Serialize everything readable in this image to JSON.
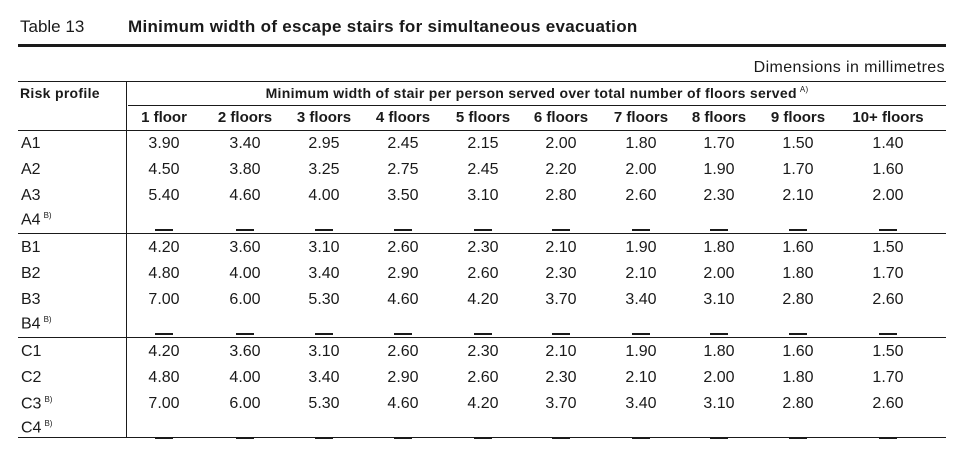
{
  "caption": {
    "number": "Table 13",
    "title": "Minimum width of escape stairs for simultaneous evacuation"
  },
  "dimensions_note": "Dimensions in millimetres",
  "header": {
    "risk_profile": "Risk profile",
    "span_label": "Minimum width of stair per person served over total number of floors served",
    "span_note": "A)",
    "columns": [
      "1 floor",
      "2 floors",
      "3 floors",
      "4 floors",
      "5 floors",
      "6 floors",
      "7 floors",
      "8 floors",
      "9 floors",
      "10+ floors"
    ]
  },
  "dash_glyph": "—",
  "groups": [
    {
      "rows": [
        {
          "label": "A1",
          "note": "",
          "values": [
            "3.90",
            "3.40",
            "2.95",
            "2.45",
            "2.15",
            "2.00",
            "1.80",
            "1.70",
            "1.50",
            "1.40"
          ]
        },
        {
          "label": "A2",
          "note": "",
          "values": [
            "4.50",
            "3.80",
            "3.25",
            "2.75",
            "2.45",
            "2.20",
            "2.00",
            "1.90",
            "1.70",
            "1.60"
          ]
        },
        {
          "label": "A3",
          "note": "",
          "values": [
            "5.40",
            "4.60",
            "4.00",
            "3.50",
            "3.10",
            "2.80",
            "2.60",
            "2.30",
            "2.10",
            "2.00"
          ]
        },
        {
          "label": "A4",
          "note": "B)",
          "values": []
        }
      ]
    },
    {
      "rows": [
        {
          "label": "B1",
          "note": "",
          "values": [
            "4.20",
            "3.60",
            "3.10",
            "2.60",
            "2.30",
            "2.10",
            "1.90",
            "1.80",
            "1.60",
            "1.50"
          ]
        },
        {
          "label": "B2",
          "note": "",
          "values": [
            "4.80",
            "4.00",
            "3.40",
            "2.90",
            "2.60",
            "2.30",
            "2.10",
            "2.00",
            "1.80",
            "1.70"
          ]
        },
        {
          "label": "B3",
          "note": "",
          "values": [
            "7.00",
            "6.00",
            "5.30",
            "4.60",
            "4.20",
            "3.70",
            "3.40",
            "3.10",
            "2.80",
            "2.60"
          ]
        },
        {
          "label": "B4",
          "note": "B)",
          "values": []
        }
      ]
    },
    {
      "rows": [
        {
          "label": "C1",
          "note": "",
          "values": [
            "4.20",
            "3.60",
            "3.10",
            "2.60",
            "2.30",
            "2.10",
            "1.90",
            "1.80",
            "1.60",
            "1.50"
          ]
        },
        {
          "label": "C2",
          "note": "",
          "values": [
            "4.80",
            "4.00",
            "3.40",
            "2.90",
            "2.60",
            "2.30",
            "2.10",
            "2.00",
            "1.80",
            "1.70"
          ]
        },
        {
          "label": "C3",
          "note": "B)",
          "values": [
            "7.00",
            "6.00",
            "5.30",
            "4.60",
            "4.20",
            "3.70",
            "3.40",
            "3.10",
            "2.80",
            "2.60"
          ]
        },
        {
          "label": "C4",
          "note": "B)",
          "values": []
        }
      ]
    }
  ]
}
